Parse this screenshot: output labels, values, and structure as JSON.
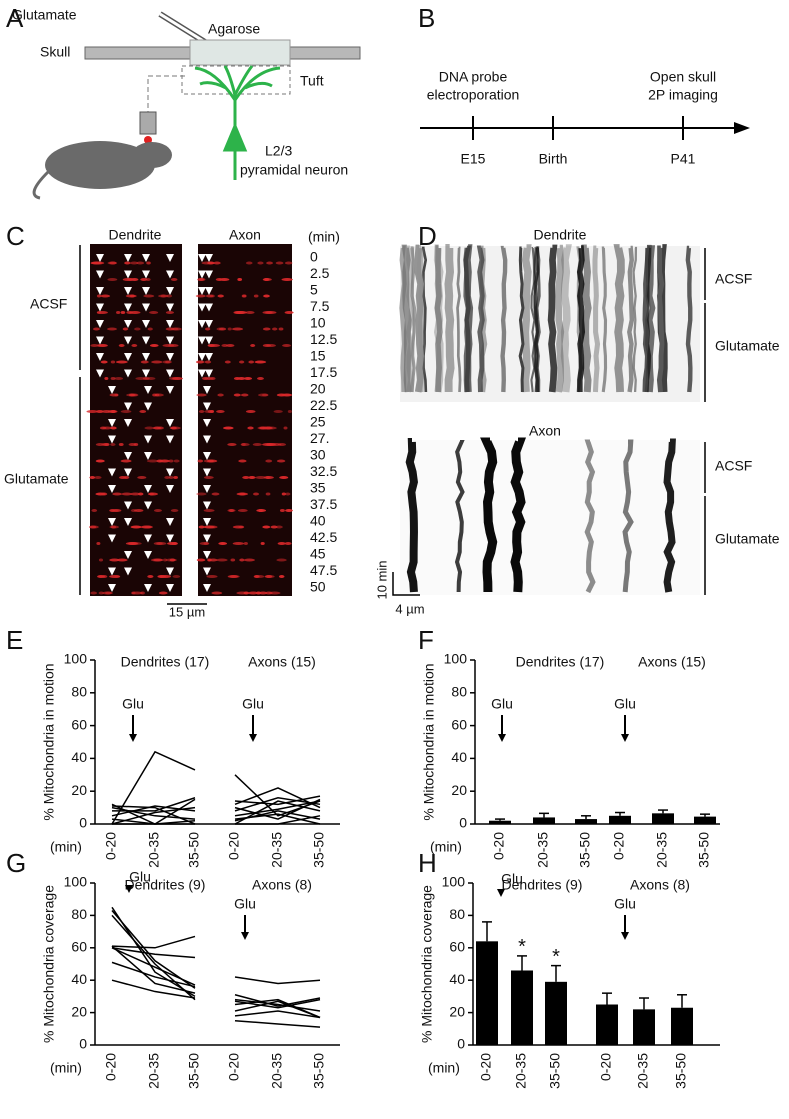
{
  "figure": {
    "A": {
      "letter": "A",
      "glutamate": "Glutamate",
      "agarose": "Agarose",
      "skull": "Skull",
      "tuft": "Tuft",
      "neuron": [
        "L2/3",
        "pyramidal neuron"
      ]
    },
    "B": {
      "letter": "B",
      "events": [
        {
          "top": [
            "DNA probe",
            "electroporation"
          ],
          "label": "E15"
        },
        {
          "top": [],
          "label": "Birth"
        },
        {
          "top": [
            "Open skull",
            "2P imaging"
          ],
          "label": "P41"
        }
      ]
    },
    "C": {
      "letter": "C",
      "dendrite": "Dendrite",
      "axon": "Axon",
      "unit": "(min)",
      "times": [
        "0",
        "2.5",
        "5",
        "7.5",
        "10",
        "12.5",
        "15",
        "17.5",
        "20",
        "22.5",
        "25",
        "27.",
        "30",
        "32.5",
        "35",
        "37.5",
        "40",
        "42.5",
        "45",
        "47.5",
        "50"
      ],
      "acsf": "ACSF",
      "glutamate": "Glutamate",
      "scale": "15 µm"
    },
    "D": {
      "letter": "D",
      "dendrite": "Dendrite",
      "axon": "Axon",
      "acsf": [
        "ACSF",
        "ACSF"
      ],
      "glutamate": [
        "Glutamate",
        "Glutamate"
      ],
      "scale_time": "10 min",
      "scale_space": "4 µm"
    }
  },
  "chart_data": [
    {
      "type": "line",
      "panel": "E",
      "y_label": "% Mitochondria in motion",
      "x_label": "(min)",
      "ylim": [
        0,
        100
      ],
      "yticks": [
        0,
        20,
        40,
        60,
        80,
        100
      ],
      "color": "#000000",
      "groups": [
        {
          "label": "Dendrites (17)",
          "annotation": "Glu",
          "annotation_marker": "arrow",
          "categories": [
            "0-20",
            "20-35",
            "35-50"
          ],
          "lines": [
            [
              0,
              44,
              33
            ],
            [
              11,
              10,
              0
            ],
            [
              12,
              0,
              15
            ],
            [
              8,
              8,
              16
            ],
            [
              10,
              5,
              3
            ],
            [
              5,
              11,
              8
            ],
            [
              0,
              7,
              10
            ],
            [
              3,
              0,
              2
            ],
            [
              0,
              0,
              0
            ]
          ]
        },
        {
          "label": "Axons (15)",
          "annotation": "Glu",
          "annotation_marker": "arrow",
          "categories": [
            "0-20",
            "20-35",
            "35-50"
          ],
          "lines": [
            [
              30,
              5,
              14
            ],
            [
              14,
              12,
              17
            ],
            [
              12,
              22,
              10
            ],
            [
              8,
              16,
              12
            ],
            [
              5,
              9,
              14
            ],
            [
              3,
              6,
              0
            ],
            [
              0,
              14,
              8
            ],
            [
              10,
              3,
              15
            ],
            [
              0,
              0,
              5
            ],
            [
              2,
              8,
              3
            ]
          ]
        }
      ]
    },
    {
      "type": "bar",
      "panel": "F",
      "y_label": "% Mitochondria in motion",
      "x_label": "(min)",
      "ylim": [
        0,
        100
      ],
      "yticks": [
        0,
        20,
        40,
        60,
        80,
        100
      ],
      "color": "#000000",
      "groups": [
        {
          "label": "Dendrites (17)",
          "annotation": "Glu",
          "annotation_marker": "arrow",
          "categories": [
            "0-20",
            "20-35",
            "35-50"
          ],
          "values": [
            2,
            4,
            3
          ],
          "errors": [
            1,
            2.5,
            2
          ]
        },
        {
          "label": "Axons (15)",
          "annotation": "Glu",
          "annotation_marker": "arrow",
          "categories": [
            "0-20",
            "20-35",
            "35-50"
          ],
          "values": [
            5,
            6.5,
            4.5
          ],
          "errors": [
            2,
            2,
            1.5
          ]
        }
      ]
    },
    {
      "type": "line",
      "panel": "G",
      "y_label": "% Mitochondria coverage",
      "x_label": "(min)",
      "ylim": [
        0,
        100
      ],
      "yticks": [
        0,
        20,
        40,
        60,
        80,
        100
      ],
      "color": "#000000",
      "groups": [
        {
          "label": "Dendrites (9)",
          "annotation": "Glu",
          "annotation_marker": "triangle",
          "categories": [
            "0-20",
            "20-35",
            "35-50"
          ],
          "lines": [
            [
              83,
              52,
              35
            ],
            [
              85,
              45,
              30
            ],
            [
              80,
              50,
              28
            ],
            [
              61,
              60,
              67
            ],
            [
              60,
              56,
              54
            ],
            [
              60,
              48,
              37
            ],
            [
              51,
              42,
              36
            ],
            [
              40,
              33,
              29
            ],
            [
              61,
              38,
              32
            ]
          ]
        },
        {
          "label": "Axons (8)",
          "annotation": "Glu",
          "annotation_marker": "arrow",
          "categories": [
            "0-20",
            "20-35",
            "35-50"
          ],
          "lines": [
            [
              42,
              38,
              40
            ],
            [
              31,
              24,
              29
            ],
            [
              28,
              25,
              21
            ],
            [
              27,
              23,
              28
            ],
            [
              25,
              28,
              17
            ],
            [
              21,
              27,
              17
            ],
            [
              18,
              21,
              17
            ],
            [
              15,
              13,
              11
            ]
          ]
        }
      ]
    },
    {
      "type": "bar",
      "panel": "H",
      "y_label": "% Mitochondria coverage",
      "x_label": "(min)",
      "ylim": [
        0,
        100
      ],
      "yticks": [
        0,
        20,
        40,
        60,
        80,
        100
      ],
      "color": "#000000",
      "groups": [
        {
          "label": "Dendrites (9)",
          "annotation": "Glu",
          "annotation_marker": "triangle",
          "categories": [
            "0-20",
            "20-35",
            "35-50"
          ],
          "values": [
            64,
            46,
            39
          ],
          "errors": [
            12,
            9,
            10
          ],
          "significance": [
            null,
            "*",
            "*"
          ]
        },
        {
          "label": "Axons (8)",
          "annotation": "Glu",
          "annotation_marker": "arrow",
          "categories": [
            "0-20",
            "20-35",
            "35-50"
          ],
          "values": [
            25,
            22,
            23
          ],
          "errors": [
            7,
            7,
            8
          ]
        }
      ]
    }
  ]
}
